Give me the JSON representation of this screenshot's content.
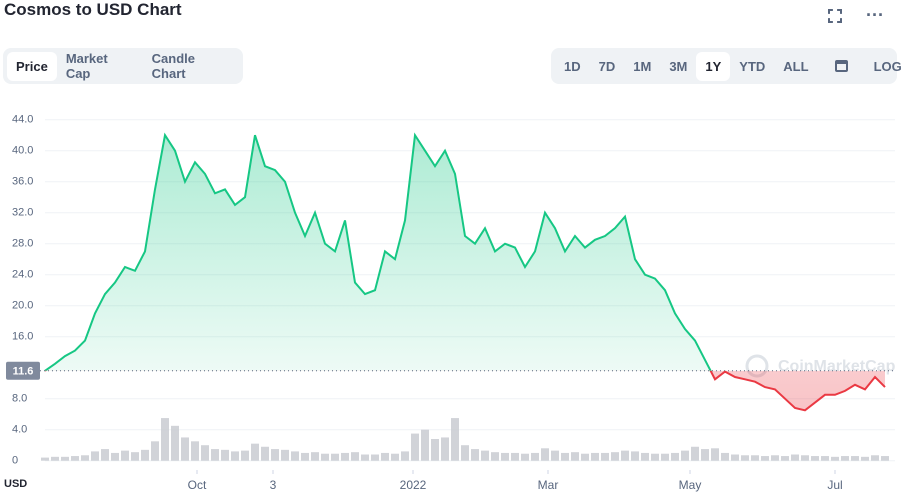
{
  "header": {
    "title": "Cosmos to USD Chart"
  },
  "tabs": [
    "Price",
    "Market Cap",
    "Candle Chart"
  ],
  "ranges": [
    "1D",
    "7D",
    "1M",
    "3M",
    "1Y",
    "YTD",
    "ALL"
  ],
  "log": "LOG",
  "watermark": "CoinMarketCap",
  "chart_data": {
    "type": "line",
    "currency": "USD",
    "x": [
      0,
      1,
      2,
      3,
      4,
      5,
      6,
      7,
      8,
      9,
      10,
      11,
      12,
      13,
      14,
      15,
      16,
      17,
      18,
      19,
      20,
      21,
      22,
      23,
      24,
      25,
      26,
      27,
      28,
      29,
      30,
      31,
      32,
      33,
      34,
      35,
      36,
      37,
      38,
      39,
      40,
      41,
      42,
      43,
      44,
      45,
      46,
      47,
      48,
      49,
      50,
      51,
      52,
      53,
      54,
      55,
      56,
      57,
      58,
      59,
      60,
      61,
      62,
      63,
      64,
      65,
      66,
      67,
      68,
      69,
      70,
      71,
      72,
      73,
      74,
      75,
      76,
      77,
      78,
      79,
      80,
      81,
      82,
      83,
      84
    ],
    "series": [
      {
        "values": [
          11.6,
          12.5,
          13.5,
          14.2,
          15.5,
          19,
          21.5,
          23,
          25,
          24.5,
          27,
          35,
          42,
          40,
          36,
          38.5,
          37,
          34.5,
          35,
          33,
          34,
          42,
          38,
          37.5,
          36,
          32,
          29,
          32,
          28,
          27,
          31,
          23,
          21.5,
          22,
          27,
          26,
          31,
          42,
          40,
          38,
          40,
          37,
          29,
          28,
          30,
          27,
          28,
          27.5,
          25,
          27,
          32,
          30,
          27,
          29,
          27.5,
          28.5,
          29,
          30,
          31.5,
          26,
          24,
          23.5,
          22,
          19,
          17,
          15.5,
          13,
          10.5,
          11.5,
          10.8,
          10.5,
          10.2,
          9.5,
          9.2,
          8,
          6.8,
          6.5,
          7.5,
          8.5,
          8.5,
          9,
          9.8,
          9.2,
          10.8,
          9.5
        ]
      },
      {
        "name": "volume",
        "values": [
          0.4,
          0.5,
          0.5,
          0.6,
          0.7,
          1.2,
          1.5,
          1.0,
          1.3,
          1.1,
          1.4,
          2.5,
          5.5,
          4.5,
          3.0,
          2.5,
          2.0,
          1.5,
          1.4,
          1.2,
          1.3,
          2.2,
          1.8,
          1.5,
          1.4,
          1.2,
          1.0,
          1.1,
          0.9,
          0.9,
          1.0,
          1.1,
          0.8,
          0.8,
          1.0,
          0.9,
          1.2,
          3.5,
          4.0,
          2.8,
          3.0,
          5.5,
          2.0,
          1.5,
          1.3,
          1.1,
          1.0,
          1.0,
          0.9,
          1.0,
          1.6,
          1.3,
          1.0,
          1.1,
          0.9,
          1.0,
          1.0,
          1.1,
          1.3,
          1.2,
          1.0,
          0.9,
          0.9,
          1.0,
          1.3,
          1.8,
          1.5,
          1.6,
          1.0,
          0.8,
          0.7,
          0.7,
          0.6,
          0.7,
          0.6,
          0.8,
          0.7,
          0.6,
          0.6,
          0.5,
          0.6,
          0.6,
          0.5,
          0.7,
          0.6
        ]
      }
    ],
    "baseline": 11.6,
    "up_color": "#16c784",
    "down_color": "#ea3943",
    "volume_color": "#c5c8ce",
    "xlim": [
      0,
      85
    ],
    "xticks": [
      {
        "value": 15.2,
        "label": "Oct"
      },
      {
        "value": 22.8,
        "label": "3"
      },
      {
        "value": 36.8,
        "label": "2022"
      },
      {
        "value": 50.3,
        "label": "Mar"
      },
      {
        "value": 64.5,
        "label": "May"
      },
      {
        "value": 79,
        "label": "Jul"
      }
    ],
    "ylim": [
      -1.2,
      46.8
    ],
    "yticks": [
      0,
      {
        "value": 4,
        "label": "4.0"
      },
      {
        "value": 8,
        "label": "8.0"
      },
      {
        "value": 16,
        "label": "16.0"
      },
      {
        "value": 20,
        "label": "20.0"
      },
      {
        "value": 24,
        "label": "24.0"
      },
      {
        "value": 28,
        "label": "28.0"
      },
      {
        "value": 32,
        "label": "32.0"
      },
      {
        "value": 36,
        "label": "36.0"
      },
      {
        "value": 40,
        "label": "40.0"
      },
      {
        "value": 44,
        "label": "44.0"
      }
    ],
    "grid": true
  }
}
